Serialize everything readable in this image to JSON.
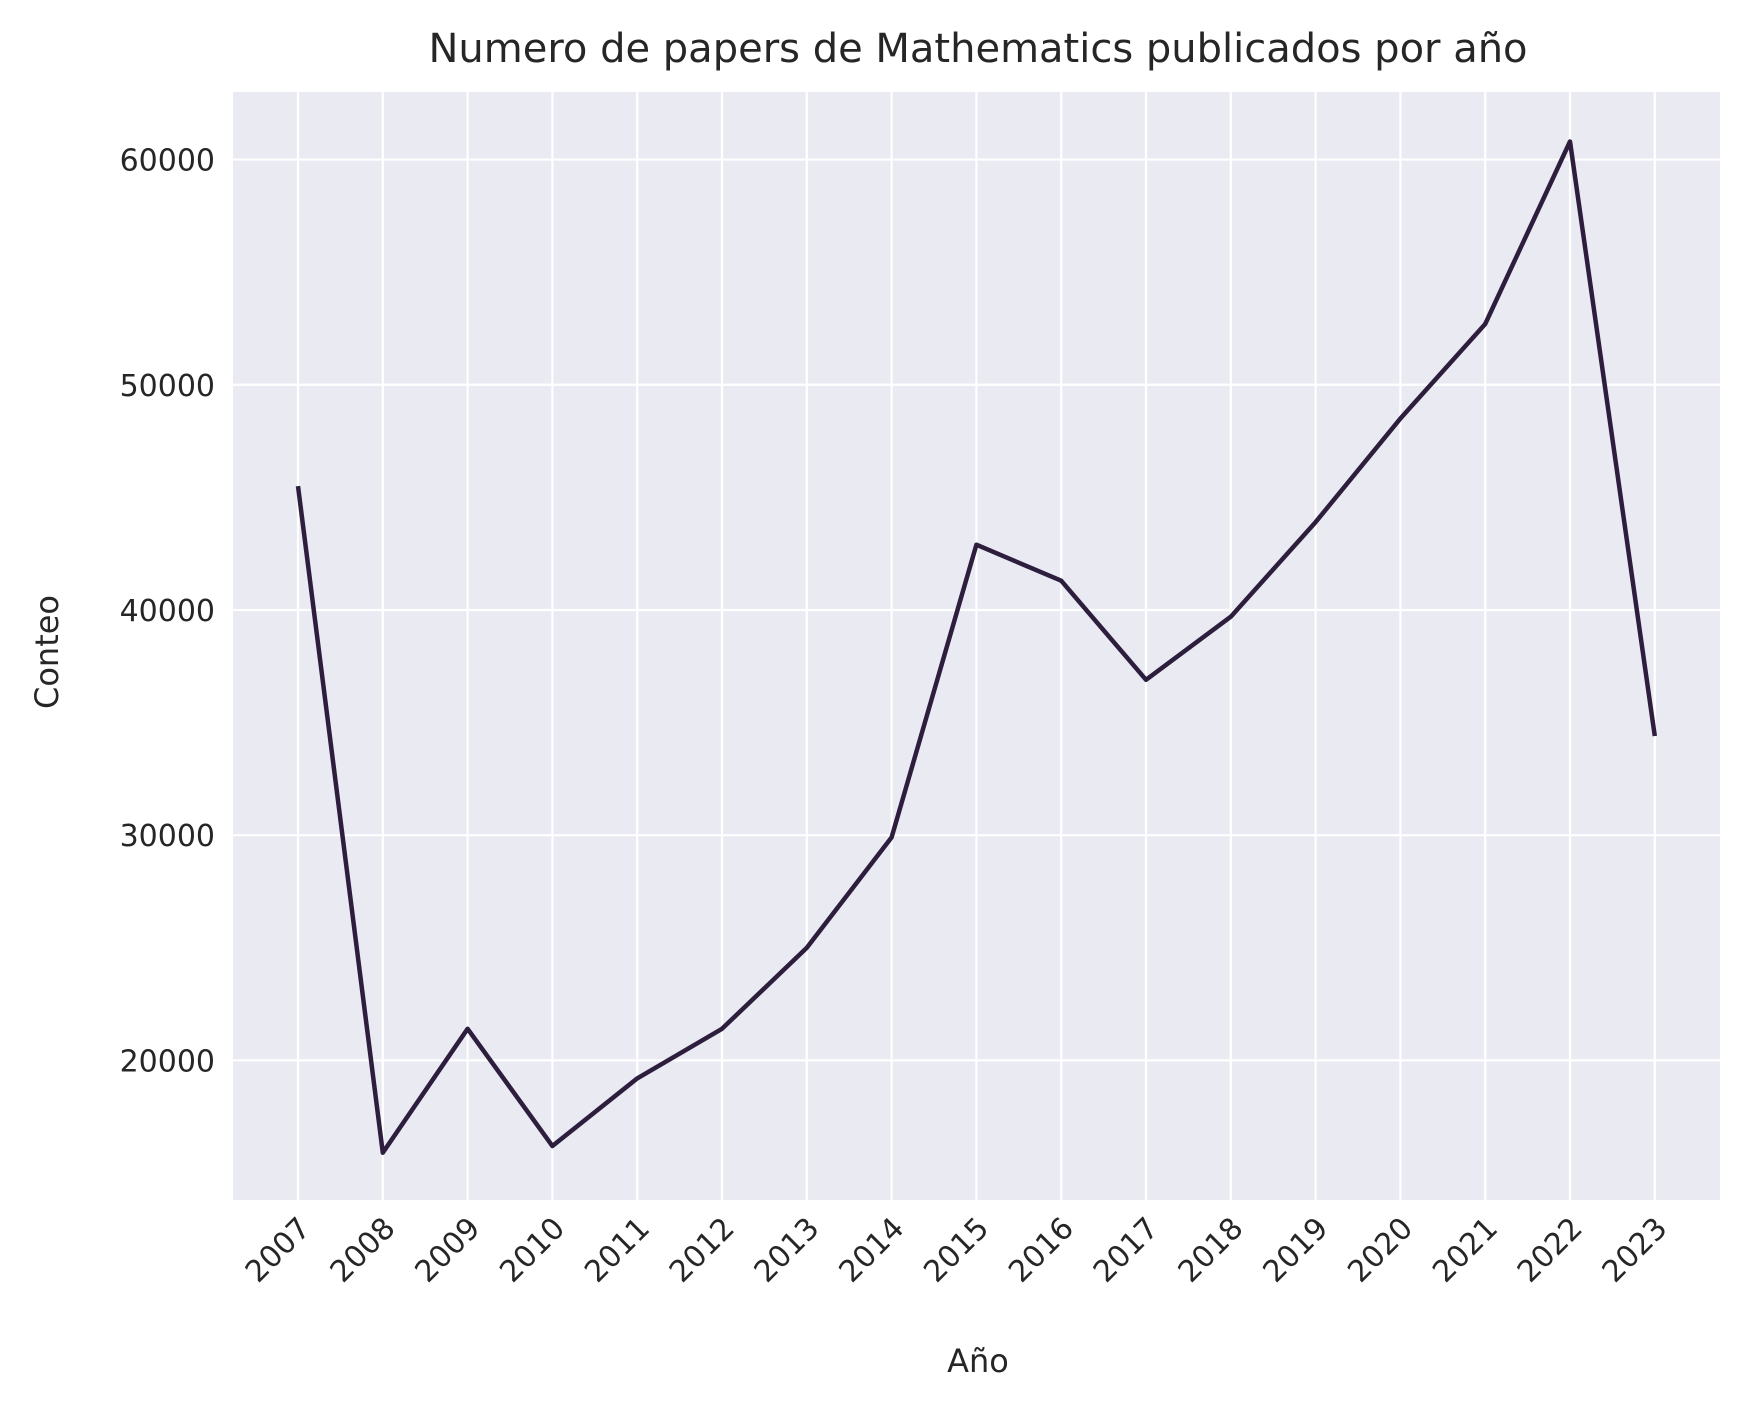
{
  "chart_data": {
    "type": "line",
    "title": "Numero de papers de Mathematics publicados por año",
    "xlabel": "Año",
    "ylabel": "Conteo",
    "x": [
      "2007",
      "2008",
      "2009",
      "2010",
      "2011",
      "2012",
      "2013",
      "2014",
      "2015",
      "2016",
      "2017",
      "2018",
      "2019",
      "2020",
      "2021",
      "2022",
      "2023"
    ],
    "series": [
      {
        "values": [
          45500,
          15900,
          21400,
          16200,
          19200,
          21400,
          25000,
          29900,
          42900,
          41300,
          36900,
          39700,
          43900,
          48500,
          52700,
          60800,
          34400
        ],
        "color": "#2d1e3e"
      }
    ],
    "yticks": [
      20000,
      30000,
      40000,
      50000,
      60000
    ],
    "ylim": [
      13800,
      63000
    ],
    "grid": true,
    "background": "#eaeaf2",
    "grid_color": "#ffffff"
  }
}
